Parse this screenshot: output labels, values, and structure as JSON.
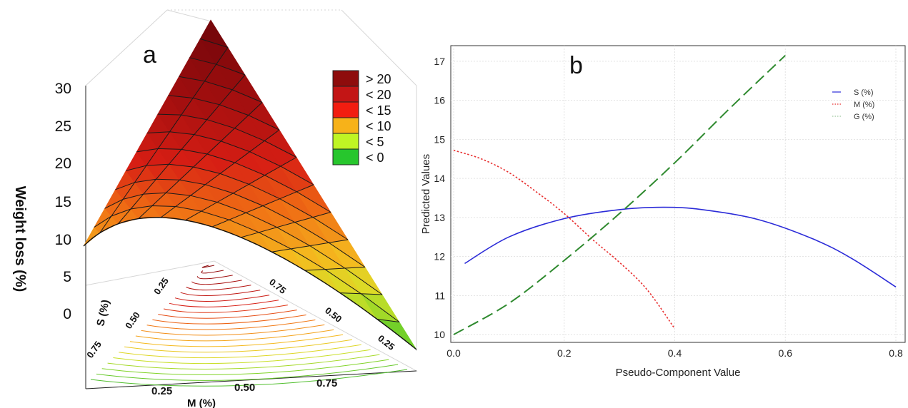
{
  "panel_a": {
    "letter": "a",
    "zlabel": "Weight loss (%)",
    "zticks": [
      "30",
      "25",
      "20",
      "15",
      "10",
      "5",
      "0"
    ],
    "s_label": "S (%)",
    "s_ticks": [
      "0.25",
      "0.50",
      "0.75"
    ],
    "m_label": "M (%)",
    "m_ticks": [
      "0.25",
      "0.50",
      "0.75"
    ],
    "right_ticks": [
      "0.75",
      "0.50",
      "0.25"
    ],
    "legend": [
      {
        "label": "> 20",
        "color": "#8e0c0c"
      },
      {
        "label": "< 20",
        "color": "#c31515"
      },
      {
        "label": "< 15",
        "color": "#f21d10"
      },
      {
        "label": "< 10",
        "color": "#f7b219"
      },
      {
        "label": "< 5",
        "color": "#bff524"
      },
      {
        "label": "< 0",
        "color": "#27c62d"
      }
    ]
  },
  "panel_b": {
    "letter": "b",
    "legend": [
      "S (%)",
      "M (%)",
      "G (%)"
    ],
    "colors": {
      "S": "#2b2bd8",
      "M": "#e83030",
      "G": "#2f8a2f"
    }
  },
  "chart_data": [
    {
      "type": "surface",
      "zlabel": "Weight loss (%)",
      "zlim": [
        0,
        30
      ],
      "zticks": [
        0,
        5,
        10,
        15,
        20,
        25,
        30
      ],
      "axes": [
        "S (%)",
        "M (%)",
        "G (%)"
      ],
      "legend": [
        "> 20",
        "< 20",
        "< 15",
        "< 10",
        "< 5",
        "< 0"
      ]
    },
    {
      "type": "line",
      "xlabel": "Pseudo-Component Value",
      "ylabel": "Predicted Values",
      "xlim": [
        0,
        0.8
      ],
      "ylim": [
        9.8,
        17.4
      ],
      "xticks": [
        0.0,
        0.2,
        0.4,
        0.6,
        0.8
      ],
      "yticks": [
        10,
        11,
        12,
        13,
        14,
        15,
        16,
        17
      ],
      "grid": true,
      "legend_position": "top-right",
      "series": [
        {
          "name": "S (%)",
          "style": "solid",
          "color": "#2b2bd8",
          "x": [
            0.02,
            0.1,
            0.2,
            0.3,
            0.38,
            0.45,
            0.55,
            0.65,
            0.72,
            0.8
          ],
          "y": [
            11.82,
            12.5,
            12.97,
            13.2,
            13.26,
            13.2,
            12.95,
            12.45,
            11.95,
            11.22
          ]
        },
        {
          "name": "M (%)",
          "style": "dotted",
          "color": "#e83030",
          "x": [
            0.0,
            0.05,
            0.1,
            0.15,
            0.2,
            0.25,
            0.3,
            0.35,
            0.4
          ],
          "y": [
            14.72,
            14.5,
            14.15,
            13.65,
            13.1,
            12.45,
            11.85,
            11.15,
            10.15
          ]
        },
        {
          "name": "G (%)",
          "style": "dashed",
          "color": "#2f8a2f",
          "x": [
            0.0,
            0.1,
            0.2,
            0.3,
            0.4,
            0.5,
            0.6
          ],
          "y": [
            10.0,
            10.8,
            11.9,
            13.1,
            14.4,
            15.8,
            17.15
          ]
        }
      ]
    }
  ]
}
